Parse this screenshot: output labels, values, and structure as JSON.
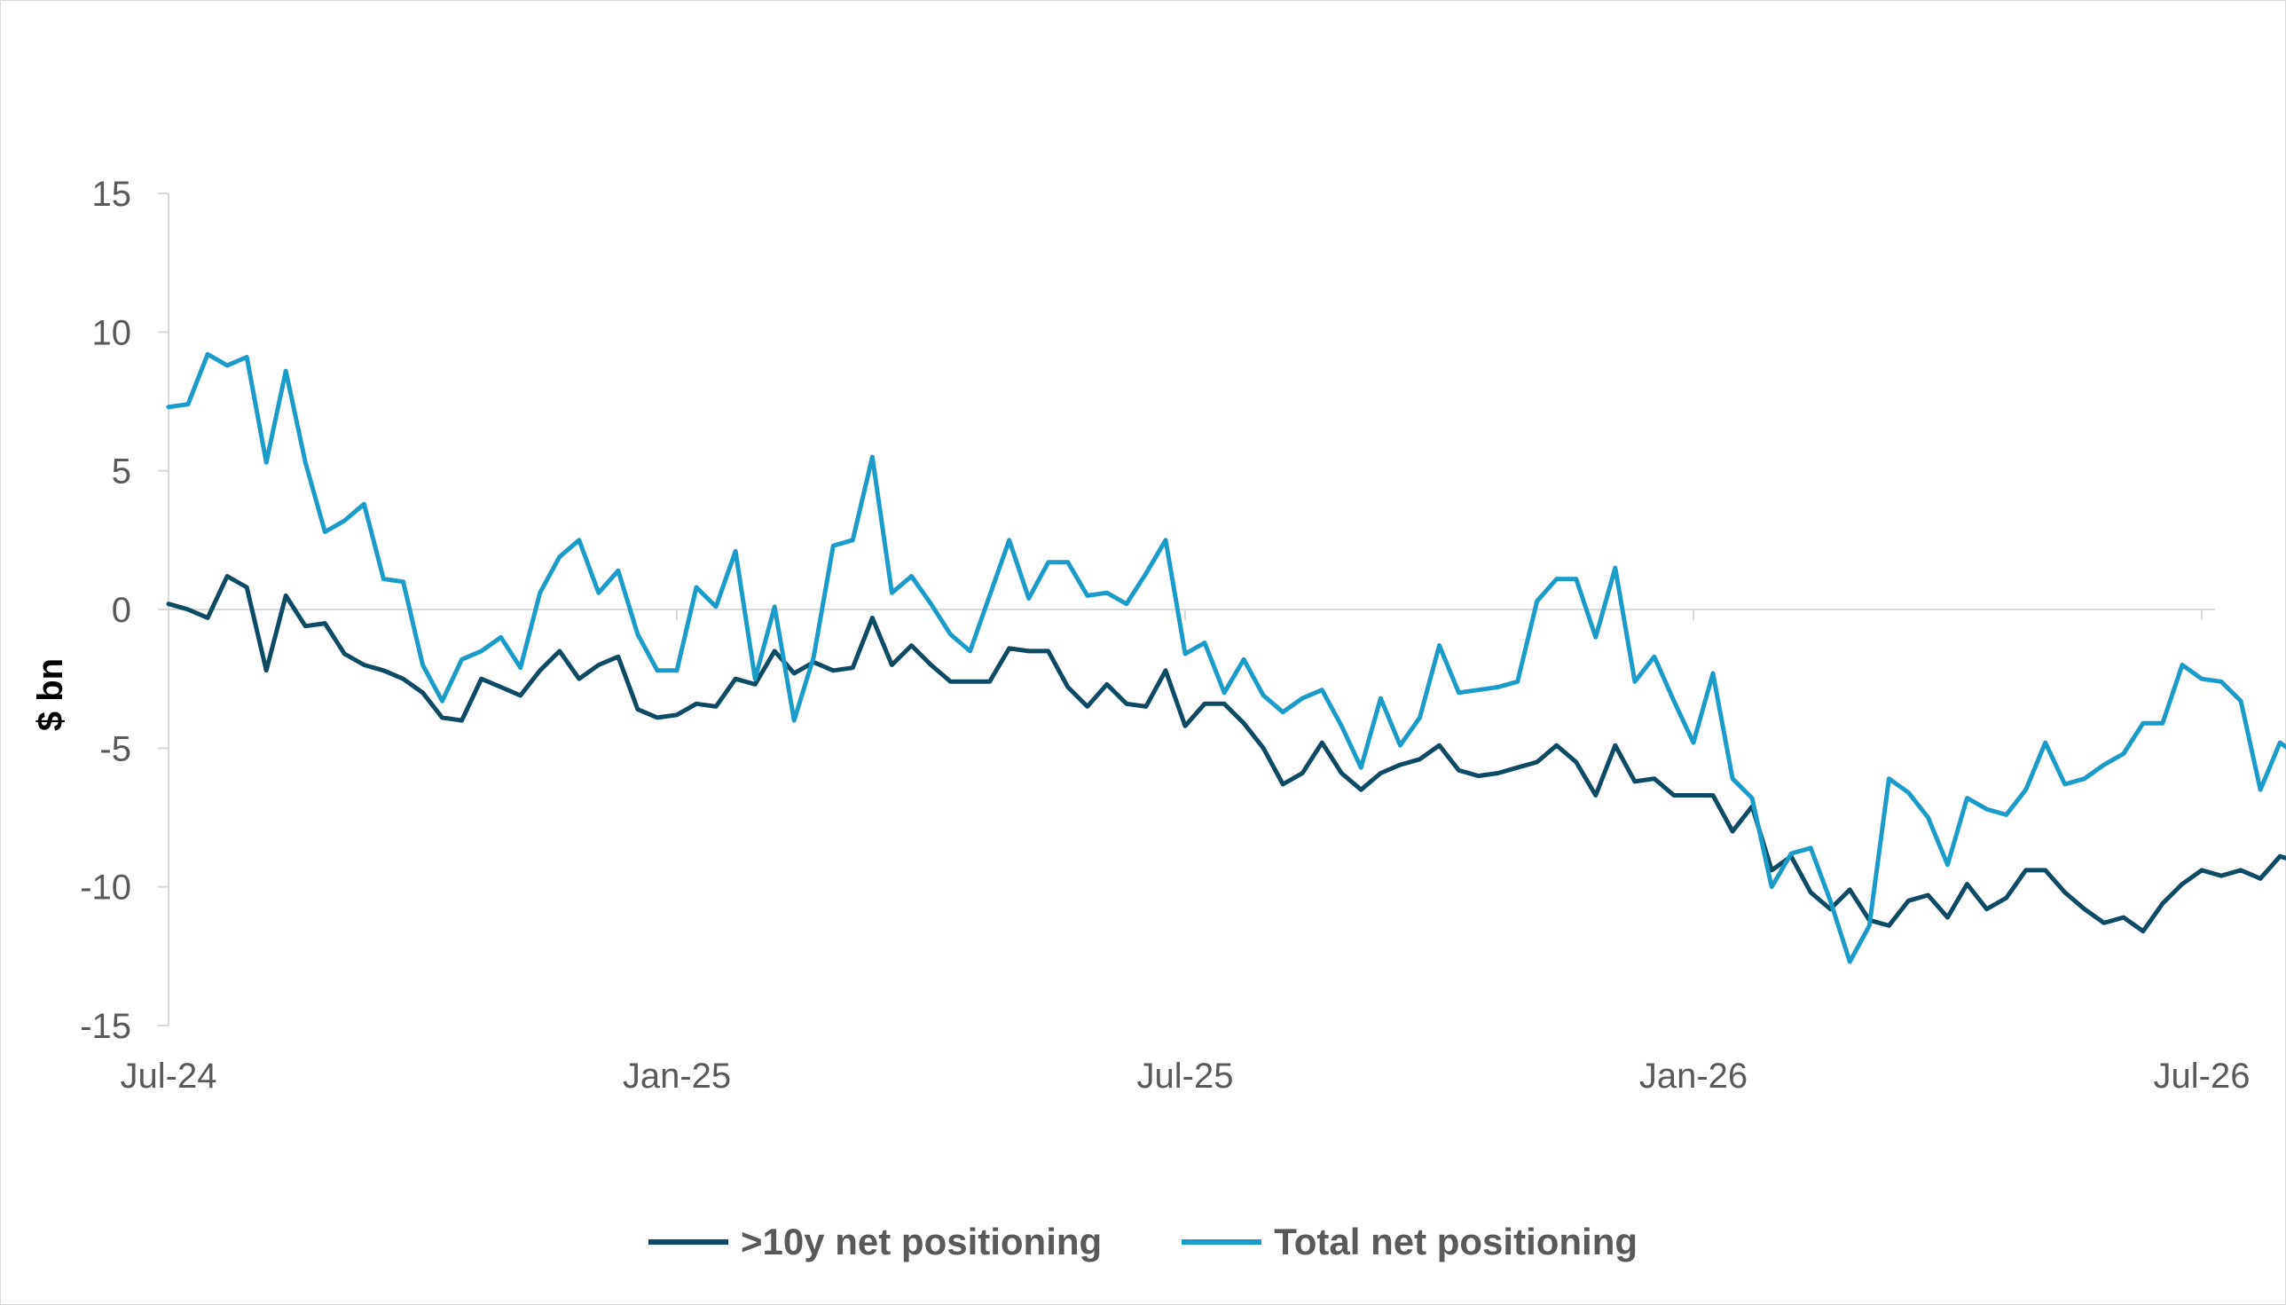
{
  "chart_data": {
    "type": "line",
    "ylabel": "$ bn",
    "xlabel": "",
    "ylim": [
      -15,
      15
    ],
    "yticks": [
      15,
      10,
      5,
      0,
      -5,
      -10,
      -15
    ],
    "ytick_labels": [
      "15",
      "10",
      "5",
      "0",
      "-5",
      "-10",
      "-15"
    ],
    "x_tick_labels": [
      "Jul-24",
      "Jan-25",
      "Jul-25",
      "Jan-26",
      "Jul-26"
    ],
    "x_tick_index": [
      0,
      26,
      52,
      78,
      104
    ],
    "grid": false,
    "legend_position": "bottom",
    "frequency": "weekly",
    "series": [
      {
        "name": ">10y net positioning",
        "color": "#0d4a63",
        "values": [
          0.2,
          0.0,
          -0.3,
          1.2,
          0.8,
          -2.2,
          0.5,
          -0.6,
          -0.5,
          -1.6,
          -2.0,
          -2.2,
          -2.5,
          -3.0,
          -3.9,
          -4.0,
          -2.5,
          -2.8,
          -3.1,
          -2.2,
          -1.5,
          -2.5,
          -2.0,
          -1.7,
          -3.6,
          -3.9,
          -3.8,
          -3.4,
          -3.5,
          -2.5,
          -2.7,
          -1.5,
          -2.3,
          -1.9,
          -2.2,
          -2.1,
          -0.3,
          -2.0,
          -1.3,
          -2.0,
          -2.6,
          -2.6,
          -2.6,
          -1.4,
          -1.5,
          -1.5,
          -2.8,
          -3.5,
          -2.7,
          -3.4,
          -3.5,
          -2.2,
          -4.2,
          -3.4,
          -3.4,
          -4.1,
          -5.0,
          -6.3,
          -5.9,
          -4.8,
          -5.9,
          -6.5,
          -5.9,
          -5.6,
          -5.4,
          -4.9,
          -5.8,
          -6.0,
          -5.9,
          -5.7,
          -5.5,
          -4.9,
          -5.5,
          -6.7,
          -4.9,
          -6.2,
          -6.1,
          -6.7,
          -6.7,
          -6.7,
          -8.0,
          -7.1,
          -9.4,
          -8.9,
          -10.2,
          -10.8,
          -10.1,
          -11.2,
          -11.4,
          -10.5,
          -10.3,
          -11.1,
          -9.9,
          -10.8,
          -10.4,
          -9.4,
          -9.4,
          -10.2,
          -10.8,
          -11.3,
          -11.1,
          -11.6,
          -10.6,
          -9.9,
          -9.4,
          -9.6,
          -9.4,
          -9.7,
          -8.9,
          -9.1
        ]
      },
      {
        "name": "Total net positioning",
        "color": "#1b9bc9",
        "values": [
          7.3,
          7.4,
          9.2,
          8.8,
          9.1,
          5.3,
          8.6,
          5.3,
          2.8,
          3.2,
          3.8,
          1.1,
          1.0,
          -2.0,
          -3.3,
          -1.8,
          -1.5,
          -1.0,
          -2.1,
          0.6,
          1.9,
          2.5,
          0.6,
          1.4,
          -0.9,
          -2.2,
          -2.2,
          0.8,
          0.1,
          2.1,
          -2.5,
          0.1,
          -4.0,
          -1.7,
          2.3,
          2.5,
          5.5,
          0.6,
          1.2,
          0.2,
          -0.9,
          -1.5,
          0.5,
          2.5,
          0.4,
          1.7,
          1.7,
          0.5,
          0.6,
          0.2,
          1.3,
          2.5,
          -1.6,
          -1.2,
          -3.0,
          -1.8,
          -3.1,
          -3.7,
          -3.2,
          -2.9,
          -4.2,
          -5.7,
          -3.2,
          -4.9,
          -3.9,
          -1.3,
          -3.0,
          -2.9,
          -2.8,
          -2.6,
          0.3,
          1.1,
          1.1,
          -1.0,
          1.5,
          -2.6,
          -1.7,
          -3.3,
          -4.8,
          -2.3,
          -6.1,
          -6.8,
          -10.0,
          -8.8,
          -8.6,
          -10.5,
          -12.7,
          -11.4,
          -6.1,
          -6.6,
          -7.5,
          -9.2,
          -6.8,
          -7.2,
          -7.4,
          -6.5,
          -4.8,
          -6.3,
          -6.1,
          -5.6,
          -5.2,
          -4.1,
          -4.1,
          -2.0,
          -2.5,
          -2.6,
          -3.3,
          -6.5,
          -4.8,
          -5.3
        ]
      }
    ]
  }
}
